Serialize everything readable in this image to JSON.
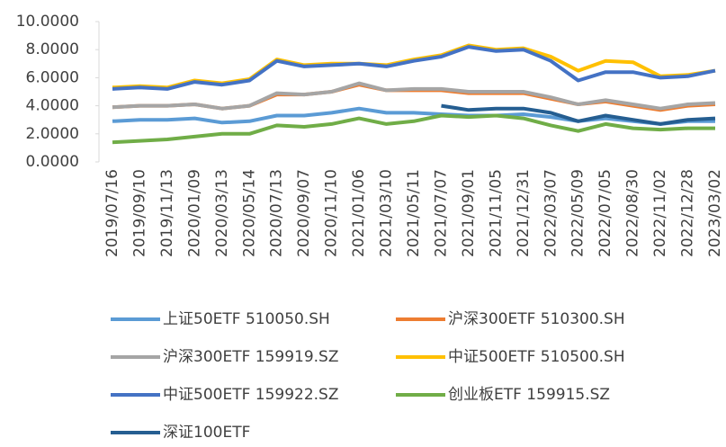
{
  "chart_data": {
    "type": "line",
    "categories": [
      "2019/07/16",
      "2019/09/10",
      "2019/11/13",
      "2020/01/09",
      "2020/03/13",
      "2020/05/14",
      "2020/07/13",
      "2020/09/07",
      "2020/11/10",
      "2021/01/06",
      "2021/03/10",
      "2021/05/11",
      "2021/07/07",
      "2021/09/01",
      "2021/11/05",
      "2021/12/31",
      "2022/03/07",
      "2022/05/09",
      "2022/07/05",
      "2022/08/30",
      "2022/11/02",
      "2022/12/28",
      "2023/03/02"
    ],
    "series": [
      {
        "name": "上证50ETF 510050.SH",
        "color": "#5b9bd5",
        "values": [
          2.9,
          3.0,
          3.0,
          3.1,
          2.8,
          2.9,
          3.3,
          3.3,
          3.5,
          3.8,
          3.5,
          3.5,
          3.4,
          3.3,
          3.3,
          3.4,
          3.2,
          2.9,
          3.1,
          2.9,
          2.7,
          2.9,
          2.9
        ]
      },
      {
        "name": "沪深300ETF 510300.SH",
        "color": "#ed7d31",
        "values": [
          3.9,
          4.0,
          4.0,
          4.1,
          3.8,
          4.0,
          4.8,
          4.8,
          5.0,
          5.5,
          5.1,
          5.1,
          5.1,
          4.9,
          4.9,
          4.9,
          4.5,
          4.1,
          4.3,
          4.0,
          3.7,
          4.0,
          4.1
        ]
      },
      {
        "name": "沪深300ETF 159919.SZ",
        "color": "#a5a5a5",
        "values": [
          3.9,
          4.0,
          4.0,
          4.1,
          3.8,
          4.0,
          4.9,
          4.8,
          5.0,
          5.6,
          5.1,
          5.2,
          5.2,
          5.0,
          5.0,
          5.0,
          4.6,
          4.1,
          4.4,
          4.1,
          3.8,
          4.1,
          4.2
        ]
      },
      {
        "name": "中证500ETF 510500.SH",
        "color": "#ffc000",
        "values": [
          5.3,
          5.4,
          5.3,
          5.8,
          5.6,
          5.9,
          7.3,
          6.9,
          7.0,
          7.0,
          6.9,
          7.3,
          7.6,
          8.3,
          8.0,
          8.1,
          7.5,
          6.5,
          7.2,
          7.1,
          6.1,
          6.2,
          6.5
        ]
      },
      {
        "name": "中证500ETF 159922.SZ",
        "color": "#4472c4",
        "values": [
          5.2,
          5.3,
          5.2,
          5.7,
          5.5,
          5.8,
          7.2,
          6.8,
          6.9,
          7.0,
          6.8,
          7.2,
          7.5,
          8.2,
          7.9,
          8.0,
          7.2,
          5.8,
          6.4,
          6.4,
          6.0,
          6.1,
          6.5
        ]
      },
      {
        "name": "创业板ETF 159915.SZ",
        "color": "#70ad47",
        "values": [
          1.4,
          1.5,
          1.6,
          1.8,
          2.0,
          2.0,
          2.6,
          2.5,
          2.7,
          3.1,
          2.7,
          2.9,
          3.3,
          3.2,
          3.3,
          3.1,
          2.6,
          2.2,
          2.7,
          2.4,
          2.3,
          2.4,
          2.4
        ]
      },
      {
        "name": "深证100ETF",
        "color": "#255e91",
        "values": [
          null,
          null,
          null,
          null,
          null,
          null,
          null,
          null,
          null,
          null,
          null,
          null,
          4.0,
          3.7,
          3.8,
          3.8,
          3.5,
          2.9,
          3.3,
          3.0,
          2.7,
          3.0,
          3.1
        ]
      }
    ],
    "ylim": [
      0,
      10
    ],
    "yticks": [
      {
        "value": 0,
        "label": "0.0000"
      },
      {
        "value": 2,
        "label": "2.0000"
      },
      {
        "value": 4,
        "label": "4.0000"
      },
      {
        "value": 6,
        "label": "6.0000"
      },
      {
        "value": 8,
        "label": "8.0000"
      },
      {
        "value": 10,
        "label": "10.0000"
      }
    ],
    "grid": false,
    "legend": "bottom"
  }
}
